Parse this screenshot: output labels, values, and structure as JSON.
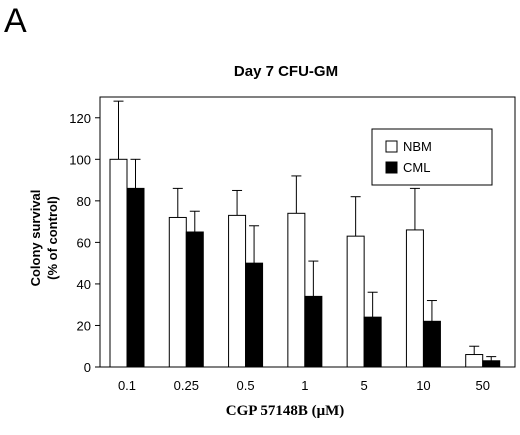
{
  "panel_letter": "A",
  "chart_data": {
    "type": "bar",
    "title": "Day 7 CFU-GM",
    "xlabel": "CGP 57148B (μM)",
    "ylabel_line1": "Colony survival",
    "ylabel_line2": "(% of control)",
    "categories": [
      "0.1",
      "0.25",
      "0.5",
      "1",
      "5",
      "10",
      "50"
    ],
    "yticks": [
      "0",
      "20",
      "40",
      "60",
      "80",
      "100",
      "120"
    ],
    "ylim": [
      0,
      130
    ],
    "grid": false,
    "legend_position": "top-right",
    "series": [
      {
        "name": "NBM",
        "color": "#ffffff",
        "values": [
          100,
          72,
          73,
          74,
          63,
          66,
          6
        ],
        "errors": [
          28,
          14,
          12,
          18,
          19,
          20,
          4
        ]
      },
      {
        "name": "CML",
        "color": "#000000",
        "values": [
          86,
          65,
          50,
          34,
          24,
          22,
          3
        ],
        "errors": [
          14,
          10,
          18,
          17,
          12,
          10,
          2
        ]
      }
    ]
  }
}
